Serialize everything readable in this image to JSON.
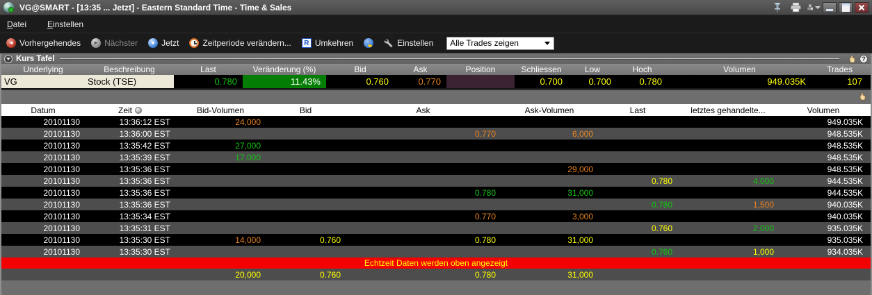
{
  "window": {
    "title": "VG@SMART - [13:35 ... Jetzt] - Eastern Standard Time - Time & Sales"
  },
  "menu": {
    "items": [
      "Datei",
      "Einstellen"
    ]
  },
  "toolbar": {
    "buttons": [
      {
        "label": "Vorhergehendes",
        "disabled": false
      },
      {
        "label": "Nächster",
        "disabled": true
      },
      {
        "label": "Jetzt",
        "disabled": false
      },
      {
        "label": "Zeitperiode verändern...",
        "disabled": false
      },
      {
        "label": "Umkehren",
        "disabled": false
      },
      {
        "label": "Einstellen",
        "disabled": false
      }
    ],
    "reverse_icon_letter": "R",
    "trades_filter_value": "Alle Trades zeigen"
  },
  "quote_panel": {
    "title": "Kurs Tafel",
    "columns": [
      "Underlying",
      "Beschreibung",
      "Last",
      "Veränderung (%)",
      "Bid",
      "Ask",
      "Position",
      "Schliessen",
      "Low",
      "Hoch",
      "Volumen",
      "Trades"
    ],
    "row": {
      "underlying": "VG",
      "beschreibung": "Stock (TSE)",
      "last": "0.780",
      "change_pct": "11.43%",
      "bid": "0.760",
      "ask": "0.770",
      "position": "",
      "schliessen": "0.700",
      "low": "0.700",
      "hoch": "0.780",
      "volumen": "949.035K",
      "trades": "107"
    }
  },
  "trades_table": {
    "columns": [
      "Datum",
      "Zeit",
      "Bid-Volumen",
      "Bid",
      "Ask",
      "Ask-Volumen",
      "Last",
      "letztes gehandelte...",
      "Volumen"
    ],
    "sorted_column": "Zeit",
    "rows": [
      [
        "20101130",
        "13:36:12 EST",
        {
          "t": "24,000",
          "c": "orange"
        },
        "",
        "",
        "",
        "",
        "",
        "949.035K"
      ],
      [
        "20101130",
        "13:36:00 EST",
        "",
        "",
        {
          "t": "0.770",
          "c": "orange"
        },
        {
          "t": "6,000",
          "c": "orange"
        },
        "",
        "",
        "948.535K"
      ],
      [
        "20101130",
        "13:35:42 EST",
        {
          "t": "27,000",
          "c": "green"
        },
        "",
        "",
        "",
        "",
        "",
        "948.535K"
      ],
      [
        "20101130",
        "13:35:39 EST",
        {
          "t": "17,000",
          "c": "green"
        },
        "",
        "",
        "",
        "",
        "",
        "948.535K"
      ],
      [
        "20101130",
        "13:35:36 EST",
        "",
        "",
        "",
        {
          "t": "29,000",
          "c": "orange"
        },
        "",
        "",
        "948.535K"
      ],
      [
        "20101130",
        "13:35:36 EST",
        "",
        "",
        "",
        "",
        {
          "t": "0.780",
          "c": "yellow"
        },
        {
          "t": "4,000",
          "c": "green"
        },
        "944.535K"
      ],
      [
        "20101130",
        "13:35:36 EST",
        "",
        "",
        {
          "t": "0.780",
          "c": "green"
        },
        {
          "t": "31,000",
          "c": "green"
        },
        "",
        "",
        "944.535K"
      ],
      [
        "20101130",
        "13:35:36 EST",
        "",
        "",
        "",
        "",
        {
          "t": "0.780",
          "c": "green"
        },
        {
          "t": "1,500",
          "c": "orange"
        },
        "940.035K"
      ],
      [
        "20101130",
        "13:35:34 EST",
        "",
        "",
        {
          "t": "0.770",
          "c": "orange"
        },
        {
          "t": "3,000",
          "c": "orange"
        },
        "",
        "",
        "940.035K"
      ],
      [
        "20101130",
        "13:35:31 EST",
        "",
        "",
        "",
        "",
        {
          "t": "0.760",
          "c": "yellow"
        },
        {
          "t": "2,000",
          "c": "green"
        },
        "935.035K"
      ],
      [
        "20101130",
        "13:35:30 EST",
        {
          "t": "14,000",
          "c": "orange"
        },
        {
          "t": "0.760",
          "c": "yellow"
        },
        {
          "t": "0.780",
          "c": "yellow"
        },
        {
          "t": "31,000",
          "c": "yellow"
        },
        "",
        "",
        "935.035K"
      ],
      [
        "20101130",
        "13:35:30 EST",
        "",
        "",
        "",
        "",
        {
          "t": "0.760",
          "c": "green"
        },
        {
          "t": "1,000",
          "c": "yellow"
        },
        "934.035K"
      ]
    ],
    "notice": "Echtzeit Daten werden oben angezeigt",
    "summary_row": [
      "",
      "",
      {
        "t": "20,000",
        "c": "yellow"
      },
      {
        "t": "0.760",
        "c": "yellow"
      },
      {
        "t": "0.780",
        "c": "yellow"
      },
      {
        "t": "31,000",
        "c": "yellow"
      },
      "",
      "",
      ""
    ]
  },
  "colors": {
    "orange": "#e8821e",
    "green": "#12c412",
    "yellow": "#ffff00",
    "white": "#ffffff",
    "up_bg": "#037d03",
    "red_banner": "#f40000",
    "cream": "#ece9d8",
    "position_bg": "#3b2334"
  }
}
